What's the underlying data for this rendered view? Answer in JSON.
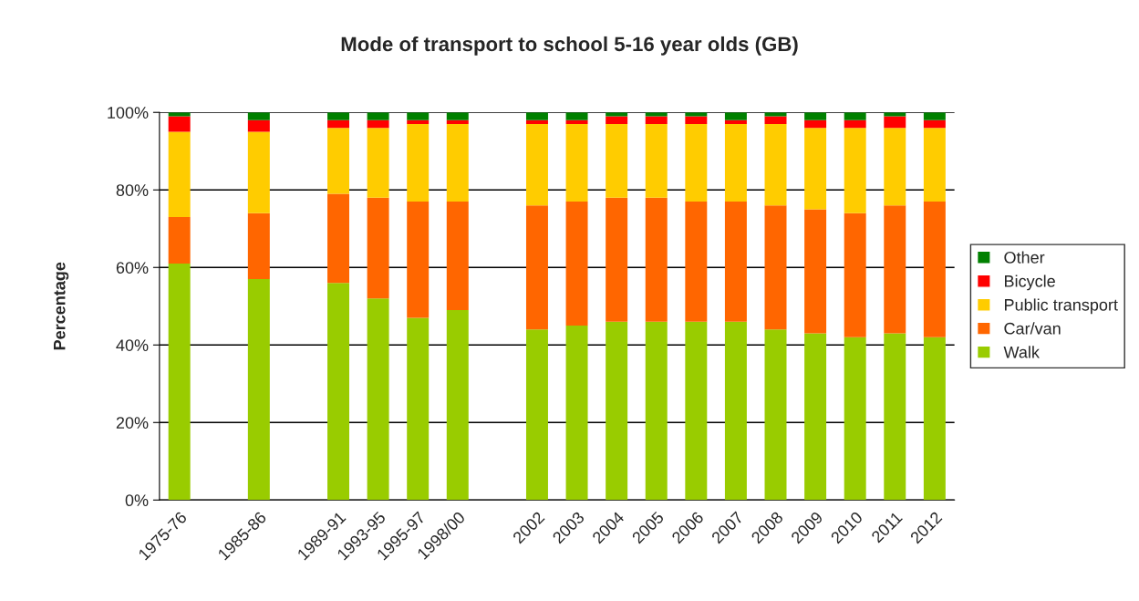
{
  "chart_data": {
    "type": "bar",
    "stacked": true,
    "title": "Mode of transport to school 5-16 year olds (GB)",
    "ylabel": "Percentage",
    "categories": [
      "1975-76",
      null,
      "1985-86",
      null,
      "1989-91",
      "1993-95",
      "1995-97",
      "1998/00",
      null,
      "2002",
      "2003",
      "2004",
      "2005",
      "2006",
      "2007",
      "2008",
      "2009",
      "2010",
      "2011",
      "2012"
    ],
    "series": [
      {
        "name": "Walk",
        "color": "#99cc00",
        "values": [
          61,
          null,
          57,
          null,
          56,
          52,
          47,
          49,
          null,
          44,
          45,
          46,
          46,
          46,
          46,
          44,
          43,
          42,
          43,
          42
        ]
      },
      {
        "name": "Car/van",
        "color": "#ff6600",
        "values": [
          12,
          null,
          17,
          null,
          23,
          26,
          30,
          28,
          null,
          32,
          32,
          32,
          32,
          31,
          31,
          32,
          32,
          32,
          33,
          35
        ]
      },
      {
        "name": "Public transport",
        "color": "#ffcc00",
        "values": [
          22,
          null,
          21,
          null,
          17,
          18,
          20,
          20,
          null,
          21,
          20,
          19,
          19,
          20,
          20,
          21,
          21,
          22,
          20,
          19
        ]
      },
      {
        "name": "Bicycle",
        "color": "#ff0000",
        "values": [
          4,
          null,
          3,
          null,
          2,
          2,
          1,
          1,
          null,
          1,
          1,
          2,
          2,
          2,
          1,
          2,
          2,
          2,
          3,
          2
        ]
      },
      {
        "name": "Other",
        "color": "#008000",
        "values": [
          1,
          null,
          2,
          null,
          2,
          2,
          2,
          2,
          null,
          2,
          2,
          1,
          1,
          1,
          2,
          1,
          2,
          2,
          1,
          2
        ]
      }
    ],
    "ylim": [
      0,
      100
    ],
    "yticks": [
      {
        "value": 0,
        "label": "0%"
      },
      {
        "value": 20,
        "label": "20%"
      },
      {
        "value": 40,
        "label": "40%"
      },
      {
        "value": 60,
        "label": "60%"
      },
      {
        "value": 80,
        "label": "80%"
      },
      {
        "value": 100,
        "label": "100%"
      }
    ],
    "grid": "y",
    "legend": "right"
  }
}
